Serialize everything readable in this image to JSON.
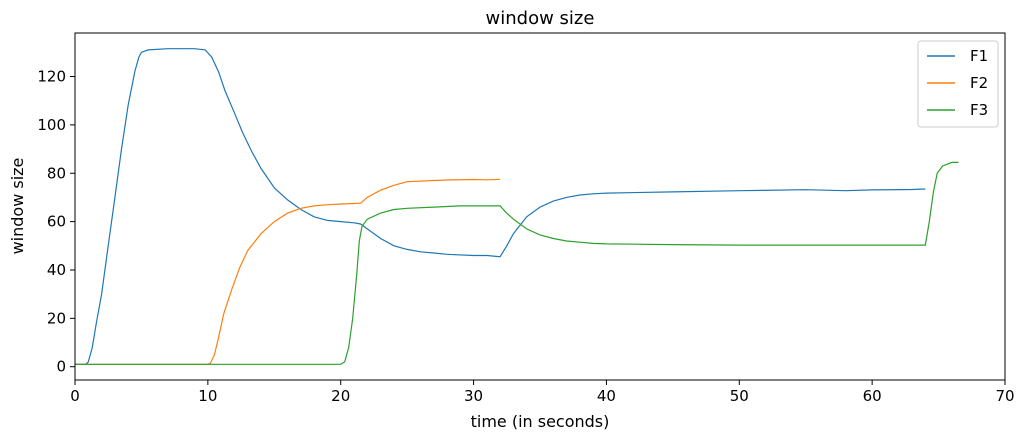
{
  "chart_data": {
    "type": "line",
    "title": "window size",
    "xlabel": "time (in seconds)",
    "ylabel": "window size",
    "xlim": [
      0,
      70
    ],
    "ylim": [
      -5.5,
      138
    ],
    "xticks": [
      0,
      10,
      20,
      30,
      40,
      50,
      60,
      70
    ],
    "yticks": [
      0,
      20,
      40,
      60,
      80,
      100,
      120
    ],
    "grid": false,
    "legend": "top-right",
    "series": [
      {
        "name": "F1",
        "color": "#1f77b4",
        "points": [
          [
            0,
            1
          ],
          [
            0.8,
            1
          ],
          [
            1,
            2
          ],
          [
            1.3,
            8
          ],
          [
            1.6,
            18
          ],
          [
            2,
            30
          ],
          [
            2.5,
            50
          ],
          [
            3,
            70
          ],
          [
            3.5,
            90
          ],
          [
            4,
            108
          ],
          [
            4.5,
            122
          ],
          [
            4.8,
            128
          ],
          [
            5,
            130
          ],
          [
            5.5,
            131
          ],
          [
            7,
            131.5
          ],
          [
            8,
            131.5
          ],
          [
            9,
            131.5
          ],
          [
            9.8,
            131
          ],
          [
            10.3,
            128
          ],
          [
            10.8,
            122
          ],
          [
            11.3,
            114
          ],
          [
            12,
            105
          ],
          [
            12.6,
            97
          ],
          [
            13.3,
            89
          ],
          [
            14,
            82
          ],
          [
            15,
            74
          ],
          [
            16,
            69
          ],
          [
            17,
            65
          ],
          [
            18,
            62
          ],
          [
            19,
            60.5
          ],
          [
            20,
            60
          ],
          [
            21,
            59.5
          ],
          [
            21.5,
            59
          ],
          [
            22,
            57
          ],
          [
            23,
            53
          ],
          [
            24,
            50
          ],
          [
            25,
            48.5
          ],
          [
            26,
            47.5
          ],
          [
            27,
            47
          ],
          [
            28,
            46.5
          ],
          [
            30,
            46
          ],
          [
            31,
            46
          ],
          [
            32,
            45.5
          ],
          [
            32.5,
            50
          ],
          [
            33,
            55
          ],
          [
            34,
            62
          ],
          [
            35,
            66
          ],
          [
            36,
            68.5
          ],
          [
            37,
            70
          ],
          [
            38,
            71
          ],
          [
            39,
            71.5
          ],
          [
            40,
            71.8
          ],
          [
            45,
            72.3
          ],
          [
            50,
            72.8
          ],
          [
            55,
            73.2
          ],
          [
            58,
            72.8
          ],
          [
            60,
            73.1
          ],
          [
            63,
            73.3
          ],
          [
            64,
            73.5
          ]
        ]
      },
      {
        "name": "F2",
        "color": "#ff7f0e",
        "points": [
          [
            0,
            1
          ],
          [
            10,
            1
          ],
          [
            10.2,
            1.5
          ],
          [
            10.5,
            5
          ],
          [
            10.8,
            12
          ],
          [
            11.2,
            22
          ],
          [
            11.8,
            32
          ],
          [
            12.4,
            41
          ],
          [
            13,
            48
          ],
          [
            14,
            55
          ],
          [
            15,
            60
          ],
          [
            16,
            63.5
          ],
          [
            17,
            65.5
          ],
          [
            18,
            66.5
          ],
          [
            19,
            67
          ],
          [
            20,
            67.3
          ],
          [
            21,
            67.5
          ],
          [
            21.5,
            67.6
          ],
          [
            22,
            70
          ],
          [
            23,
            73
          ],
          [
            24,
            75
          ],
          [
            25,
            76.5
          ],
          [
            27,
            77
          ],
          [
            28,
            77.2
          ],
          [
            30,
            77.4
          ],
          [
            31,
            77.3
          ],
          [
            32,
            77.5
          ]
        ]
      },
      {
        "name": "F3",
        "color": "#2ca02c",
        "points": [
          [
            0,
            1
          ],
          [
            20,
            1
          ],
          [
            20.3,
            2
          ],
          [
            20.6,
            8
          ],
          [
            20.9,
            20
          ],
          [
            21.2,
            38
          ],
          [
            21.4,
            52
          ],
          [
            21.6,
            58
          ],
          [
            22,
            61
          ],
          [
            23,
            63.5
          ],
          [
            24,
            65
          ],
          [
            25,
            65.5
          ],
          [
            27,
            66
          ],
          [
            29,
            66.5
          ],
          [
            31,
            66.5
          ],
          [
            32,
            66.5
          ],
          [
            32.4,
            64
          ],
          [
            33,
            61
          ],
          [
            34,
            57
          ],
          [
            35,
            54.5
          ],
          [
            36,
            53
          ],
          [
            37,
            52
          ],
          [
            38,
            51.5
          ],
          [
            39,
            51
          ],
          [
            40,
            50.8
          ],
          [
            45,
            50.5
          ],
          [
            50,
            50.3
          ],
          [
            55,
            50.3
          ],
          [
            60,
            50.3
          ],
          [
            63,
            50.3
          ],
          [
            64,
            50.3
          ],
          [
            64.3,
            60
          ],
          [
            64.6,
            72
          ],
          [
            64.9,
            80
          ],
          [
            65.3,
            83
          ],
          [
            66,
            84.5
          ],
          [
            66.5,
            84.5
          ]
        ]
      }
    ]
  }
}
